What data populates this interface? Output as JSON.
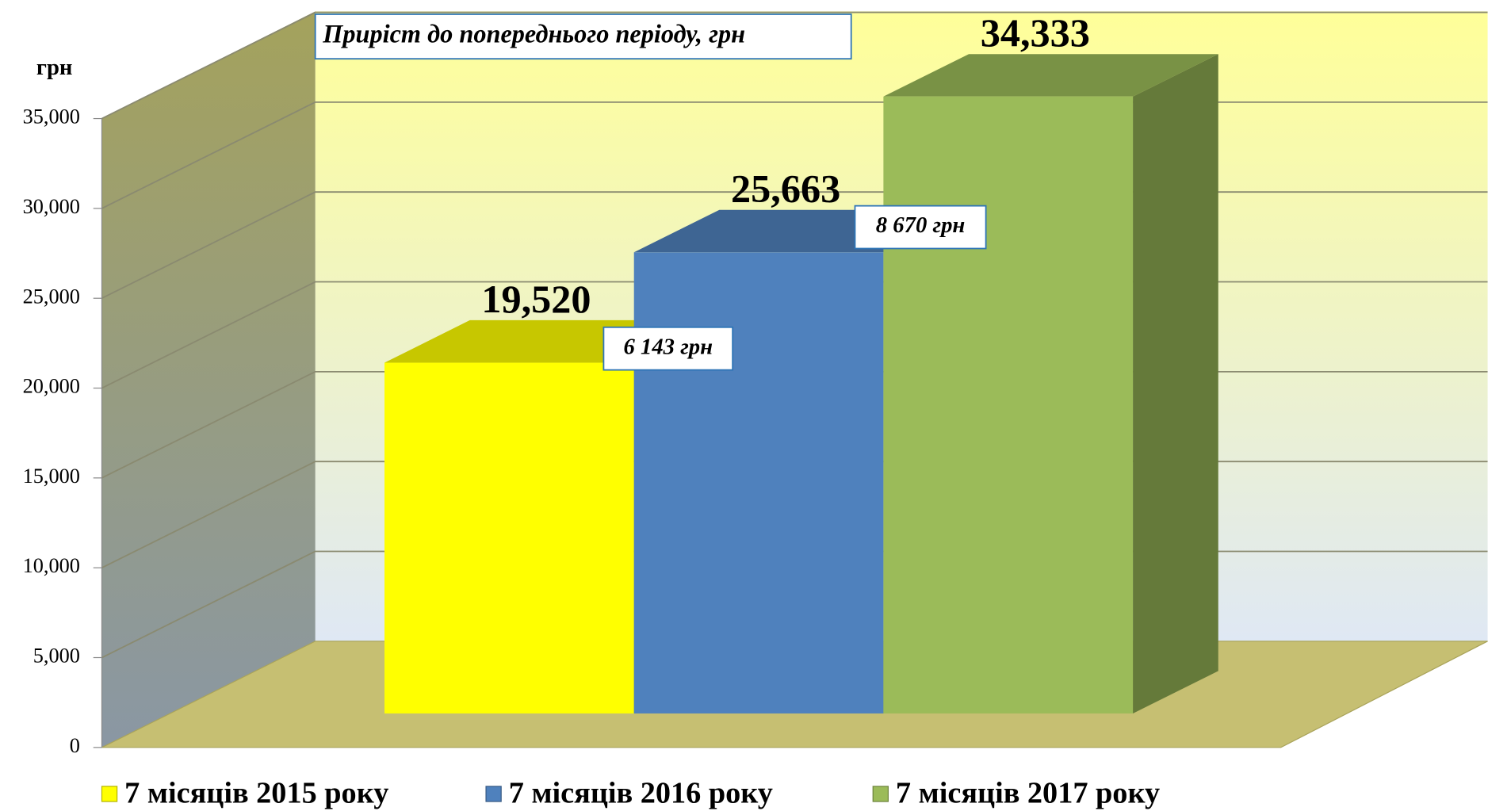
{
  "chart_data": {
    "type": "bar3d",
    "y_label": "грн",
    "annotations": [
      "Приріст до попереднього періоду, грн",
      "6 143 грн",
      "8 670 грн"
    ],
    "series": [
      {
        "name": "7 місяців 2015 року",
        "color": "#ffff00",
        "values": [
          19520
        ],
        "value_labels": [
          "19,520"
        ]
      },
      {
        "name": "7 місяців 2016 року",
        "color": "#4f81bd",
        "values": [
          25663
        ],
        "value_labels": [
          "25,663"
        ]
      },
      {
        "name": "7 місяців 2017 року",
        "color": "#9bbb59",
        "values": [
          34333
        ],
        "value_labels": [
          "34,333"
        ]
      }
    ],
    "ylim": [
      0,
      35000
    ],
    "yticks": [
      0,
      {
        "value": 5000,
        "label": "5,000"
      },
      {
        "value": 10000,
        "label": "10,000"
      },
      {
        "value": 15000,
        "label": "15,000"
      },
      {
        "value": 20000,
        "label": "20,000"
      },
      {
        "value": 25000,
        "label": "25,000"
      },
      {
        "value": 30000,
        "label": "30,000"
      },
      {
        "value": 35000,
        "label": "35,000"
      }
    ],
    "grid": true
  }
}
